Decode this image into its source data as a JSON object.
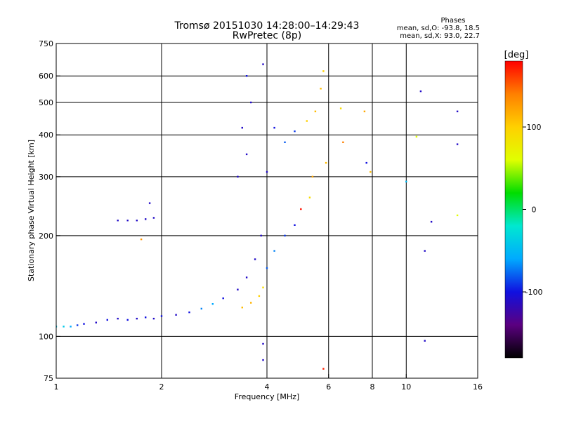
{
  "chart_data": {
    "type": "scatter",
    "title": "Tromsø 20151030 14:28:00–14:29:43",
    "subtitle": "RwPretec (8p)",
    "xlabel": "Frequency [MHz]",
    "ylabel": "Stationary phase Virtual Height [km]",
    "x_scale": "log",
    "y_scale": "log",
    "xlim": [
      1,
      16
    ],
    "ylim": [
      75,
      750
    ],
    "x_ticks": [
      1,
      2,
      4,
      6,
      8,
      10,
      16
    ],
    "x_tick_labels": [
      "1",
      "2",
      "4",
      "6",
      "8",
      "10",
      "16"
    ],
    "y_ticks": [
      75,
      100,
      200,
      300,
      400,
      500,
      600,
      750
    ],
    "y_tick_labels": [
      "75",
      "100",
      "200",
      "300",
      "400",
      "500",
      "600",
      "750"
    ],
    "grid": true,
    "phase_stats": {
      "heading": "Phases",
      "line_o": "mean, sd,O: -93.8, 18.5",
      "line_x": "mean, sd,X:  93.0, 22.7"
    },
    "colorbar": {
      "label": "[deg]",
      "range": [
        -180,
        180
      ],
      "ticks": [
        100,
        0,
        -100
      ],
      "tick_labels": [
        "100",
        "0",
        "-100"
      ],
      "colors": [
        "#000000",
        "#5b0080",
        "#1010e0",
        "#00aaff",
        "#00e8d0",
        "#00dd00",
        "#e0ff00",
        "#ffd000",
        "#ff8000",
        "#ff0000"
      ]
    },
    "series": [
      {
        "values": [
          {
            "x": 1.0,
            "y": 107,
            "phase": -40
          },
          {
            "x": 1.05,
            "y": 107,
            "phase": -40
          },
          {
            "x": 1.1,
            "y": 107,
            "phase": -60
          },
          {
            "x": 1.15,
            "y": 108,
            "phase": -90
          },
          {
            "x": 1.2,
            "y": 109,
            "phase": -100
          },
          {
            "x": 1.3,
            "y": 110,
            "phase": -110
          },
          {
            "x": 1.4,
            "y": 112,
            "phase": -100
          },
          {
            "x": 1.5,
            "y": 113,
            "phase": -110
          },
          {
            "x": 1.6,
            "y": 112,
            "phase": -100
          },
          {
            "x": 1.7,
            "y": 113,
            "phase": -110
          },
          {
            "x": 1.8,
            "y": 114,
            "phase": -100
          },
          {
            "x": 1.9,
            "y": 113,
            "phase": -110
          },
          {
            "x": 2.0,
            "y": 115,
            "phase": -100
          },
          {
            "x": 2.2,
            "y": 116,
            "phase": -110
          },
          {
            "x": 2.4,
            "y": 118,
            "phase": -100
          },
          {
            "x": 2.6,
            "y": 121,
            "phase": -70
          },
          {
            "x": 2.8,
            "y": 125,
            "phase": -60
          },
          {
            "x": 3.0,
            "y": 130,
            "phase": -100
          },
          {
            "x": 3.3,
            "y": 138,
            "phase": -110
          },
          {
            "x": 3.5,
            "y": 150,
            "phase": -110
          },
          {
            "x": 3.7,
            "y": 170,
            "phase": -110
          },
          {
            "x": 3.85,
            "y": 200,
            "phase": -110
          },
          {
            "x": 3.4,
            "y": 122,
            "phase": 110
          },
          {
            "x": 3.6,
            "y": 126,
            "phase": 115
          },
          {
            "x": 3.8,
            "y": 132,
            "phase": 100
          },
          {
            "x": 3.9,
            "y": 140,
            "phase": 90
          },
          {
            "x": 4.0,
            "y": 160,
            "phase": -80
          },
          {
            "x": 4.2,
            "y": 180,
            "phase": -70
          },
          {
            "x": 4.5,
            "y": 200,
            "phase": -90
          },
          {
            "x": 4.8,
            "y": 215,
            "phase": -100
          },
          {
            "x": 5.0,
            "y": 240,
            "phase": 175
          },
          {
            "x": 5.3,
            "y": 260,
            "phase": 90
          },
          {
            "x": 1.5,
            "y": 222,
            "phase": -110
          },
          {
            "x": 1.6,
            "y": 222,
            "phase": -110
          },
          {
            "x": 1.7,
            "y": 222,
            "phase": -110
          },
          {
            "x": 1.8,
            "y": 224,
            "phase": -110
          },
          {
            "x": 1.9,
            "y": 226,
            "phase": -110
          },
          {
            "x": 1.85,
            "y": 250,
            "phase": -110
          },
          {
            "x": 1.75,
            "y": 195,
            "phase": 130
          },
          {
            "x": 3.3,
            "y": 300,
            "phase": -110
          },
          {
            "x": 3.5,
            "y": 350,
            "phase": -110
          },
          {
            "x": 3.4,
            "y": 420,
            "phase": -110
          },
          {
            "x": 3.6,
            "y": 500,
            "phase": -110
          },
          {
            "x": 3.5,
            "y": 600,
            "phase": -100
          },
          {
            "x": 3.9,
            "y": 650,
            "phase": -110
          },
          {
            "x": 4.0,
            "y": 310,
            "phase": -110
          },
          {
            "x": 4.2,
            "y": 420,
            "phase": -100
          },
          {
            "x": 4.5,
            "y": 380,
            "phase": -80
          },
          {
            "x": 4.8,
            "y": 410,
            "phase": -90
          },
          {
            "x": 5.2,
            "y": 440,
            "phase": 100
          },
          {
            "x": 5.5,
            "y": 470,
            "phase": 110
          },
          {
            "x": 5.7,
            "y": 550,
            "phase": 110
          },
          {
            "x": 5.8,
            "y": 620,
            "phase": 100
          },
          {
            "x": 5.4,
            "y": 300,
            "phase": 120
          },
          {
            "x": 5.9,
            "y": 330,
            "phase": 110
          },
          {
            "x": 6.5,
            "y": 480,
            "phase": 90
          },
          {
            "x": 6.6,
            "y": 380,
            "phase": 140
          },
          {
            "x": 7.6,
            "y": 470,
            "phase": 120
          },
          {
            "x": 7.7,
            "y": 330,
            "phase": -100
          },
          {
            "x": 7.9,
            "y": 310,
            "phase": 110
          },
          {
            "x": 10.0,
            "y": 290,
            "phase": -50
          },
          {
            "x": 11.0,
            "y": 540,
            "phase": -110
          },
          {
            "x": 10.7,
            "y": 395,
            "phase": 60
          },
          {
            "x": 11.3,
            "y": 180,
            "phase": -110
          },
          {
            "x": 11.8,
            "y": 220,
            "phase": -110
          },
          {
            "x": 11.3,
            "y": 97,
            "phase": -110
          },
          {
            "x": 14.0,
            "y": 470,
            "phase": -110
          },
          {
            "x": 14.0,
            "y": 375,
            "phase": -110
          },
          {
            "x": 14.0,
            "y": 230,
            "phase": 60
          },
          {
            "x": 3.9,
            "y": 95,
            "phase": -110
          },
          {
            "x": 3.9,
            "y": 85,
            "phase": -110
          },
          {
            "x": 5.8,
            "y": 80,
            "phase": 170
          }
        ]
      }
    ]
  }
}
